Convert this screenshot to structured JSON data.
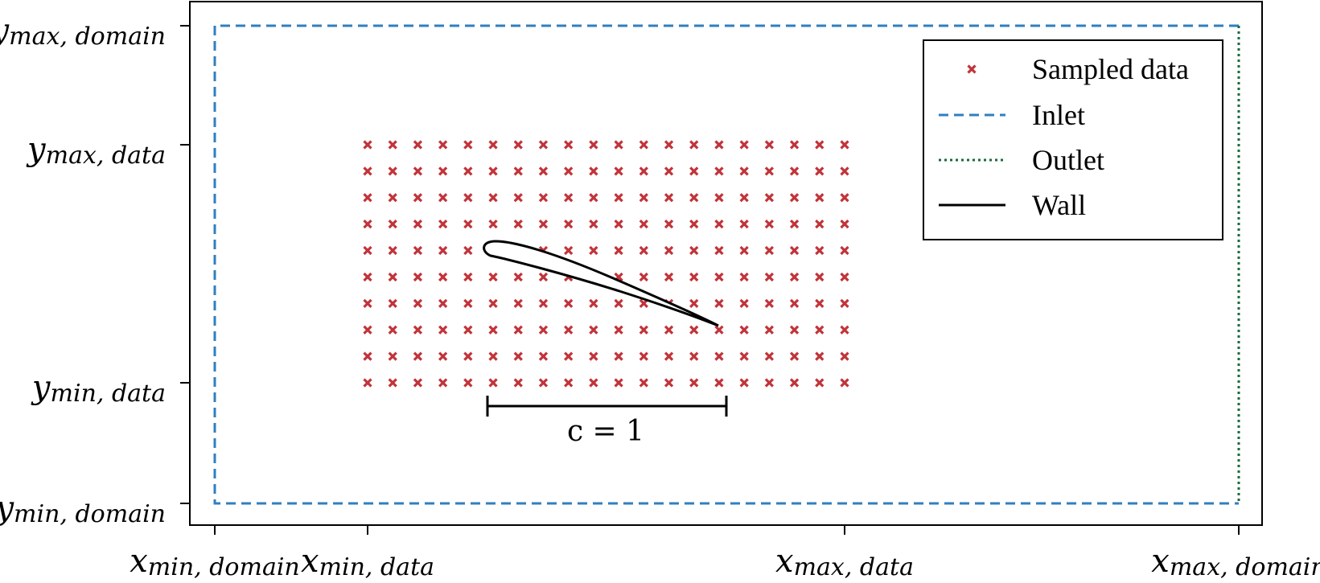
{
  "colors": {
    "sampled": "#c1343a",
    "inlet": "#2f7fc1",
    "outlet": "#1a6b3a",
    "wall": "#000000",
    "frame": "#000000"
  },
  "y_ticks": [
    {
      "main": "y",
      "sub": "max, domain"
    },
    {
      "main": "y",
      "sub": "max, data"
    },
    {
      "main": "y",
      "sub": "min, data"
    },
    {
      "main": "y",
      "sub": "min, domain"
    }
  ],
  "x_ticks": [
    {
      "main": "x",
      "sub": "min, domain"
    },
    {
      "main": "x",
      "sub": "min, data"
    },
    {
      "main": "x",
      "sub": "max, data"
    },
    {
      "main": "x",
      "sub": "max, domain"
    }
  ],
  "legend": {
    "sampled": "Sampled data",
    "inlet": "Inlet",
    "outlet": "Outlet",
    "wall": "Wall"
  },
  "chord_label": "c = 1",
  "sample_grid": {
    "columns": 20,
    "rows": 10
  }
}
